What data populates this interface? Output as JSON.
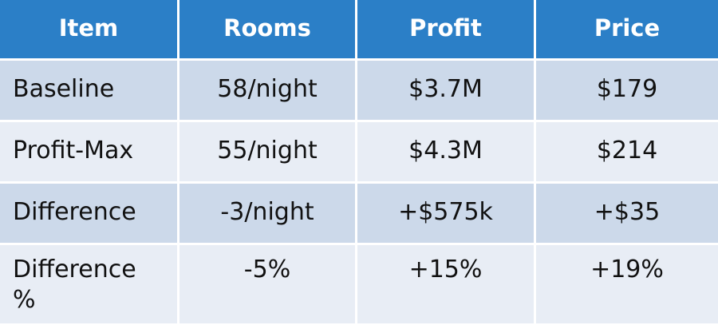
{
  "table": {
    "headers": [
      "Item",
      "Rooms",
      "Profit",
      "Price"
    ],
    "rows": [
      [
        "Baseline",
        "58/night",
        "$3.7M",
        "$179"
      ],
      [
        "Profit-Max",
        "55/night",
        "$4.3M",
        "$214"
      ],
      [
        "Difference",
        "-3/night",
        "+$575k",
        "+$35"
      ],
      [
        "Difference %",
        "-5%",
        "+15%",
        "+19%"
      ]
    ]
  },
  "colors": {
    "header_bg": "#2b7fc7",
    "row_band_dark": "#ccd9ea",
    "row_band_light": "#e8edf5"
  }
}
